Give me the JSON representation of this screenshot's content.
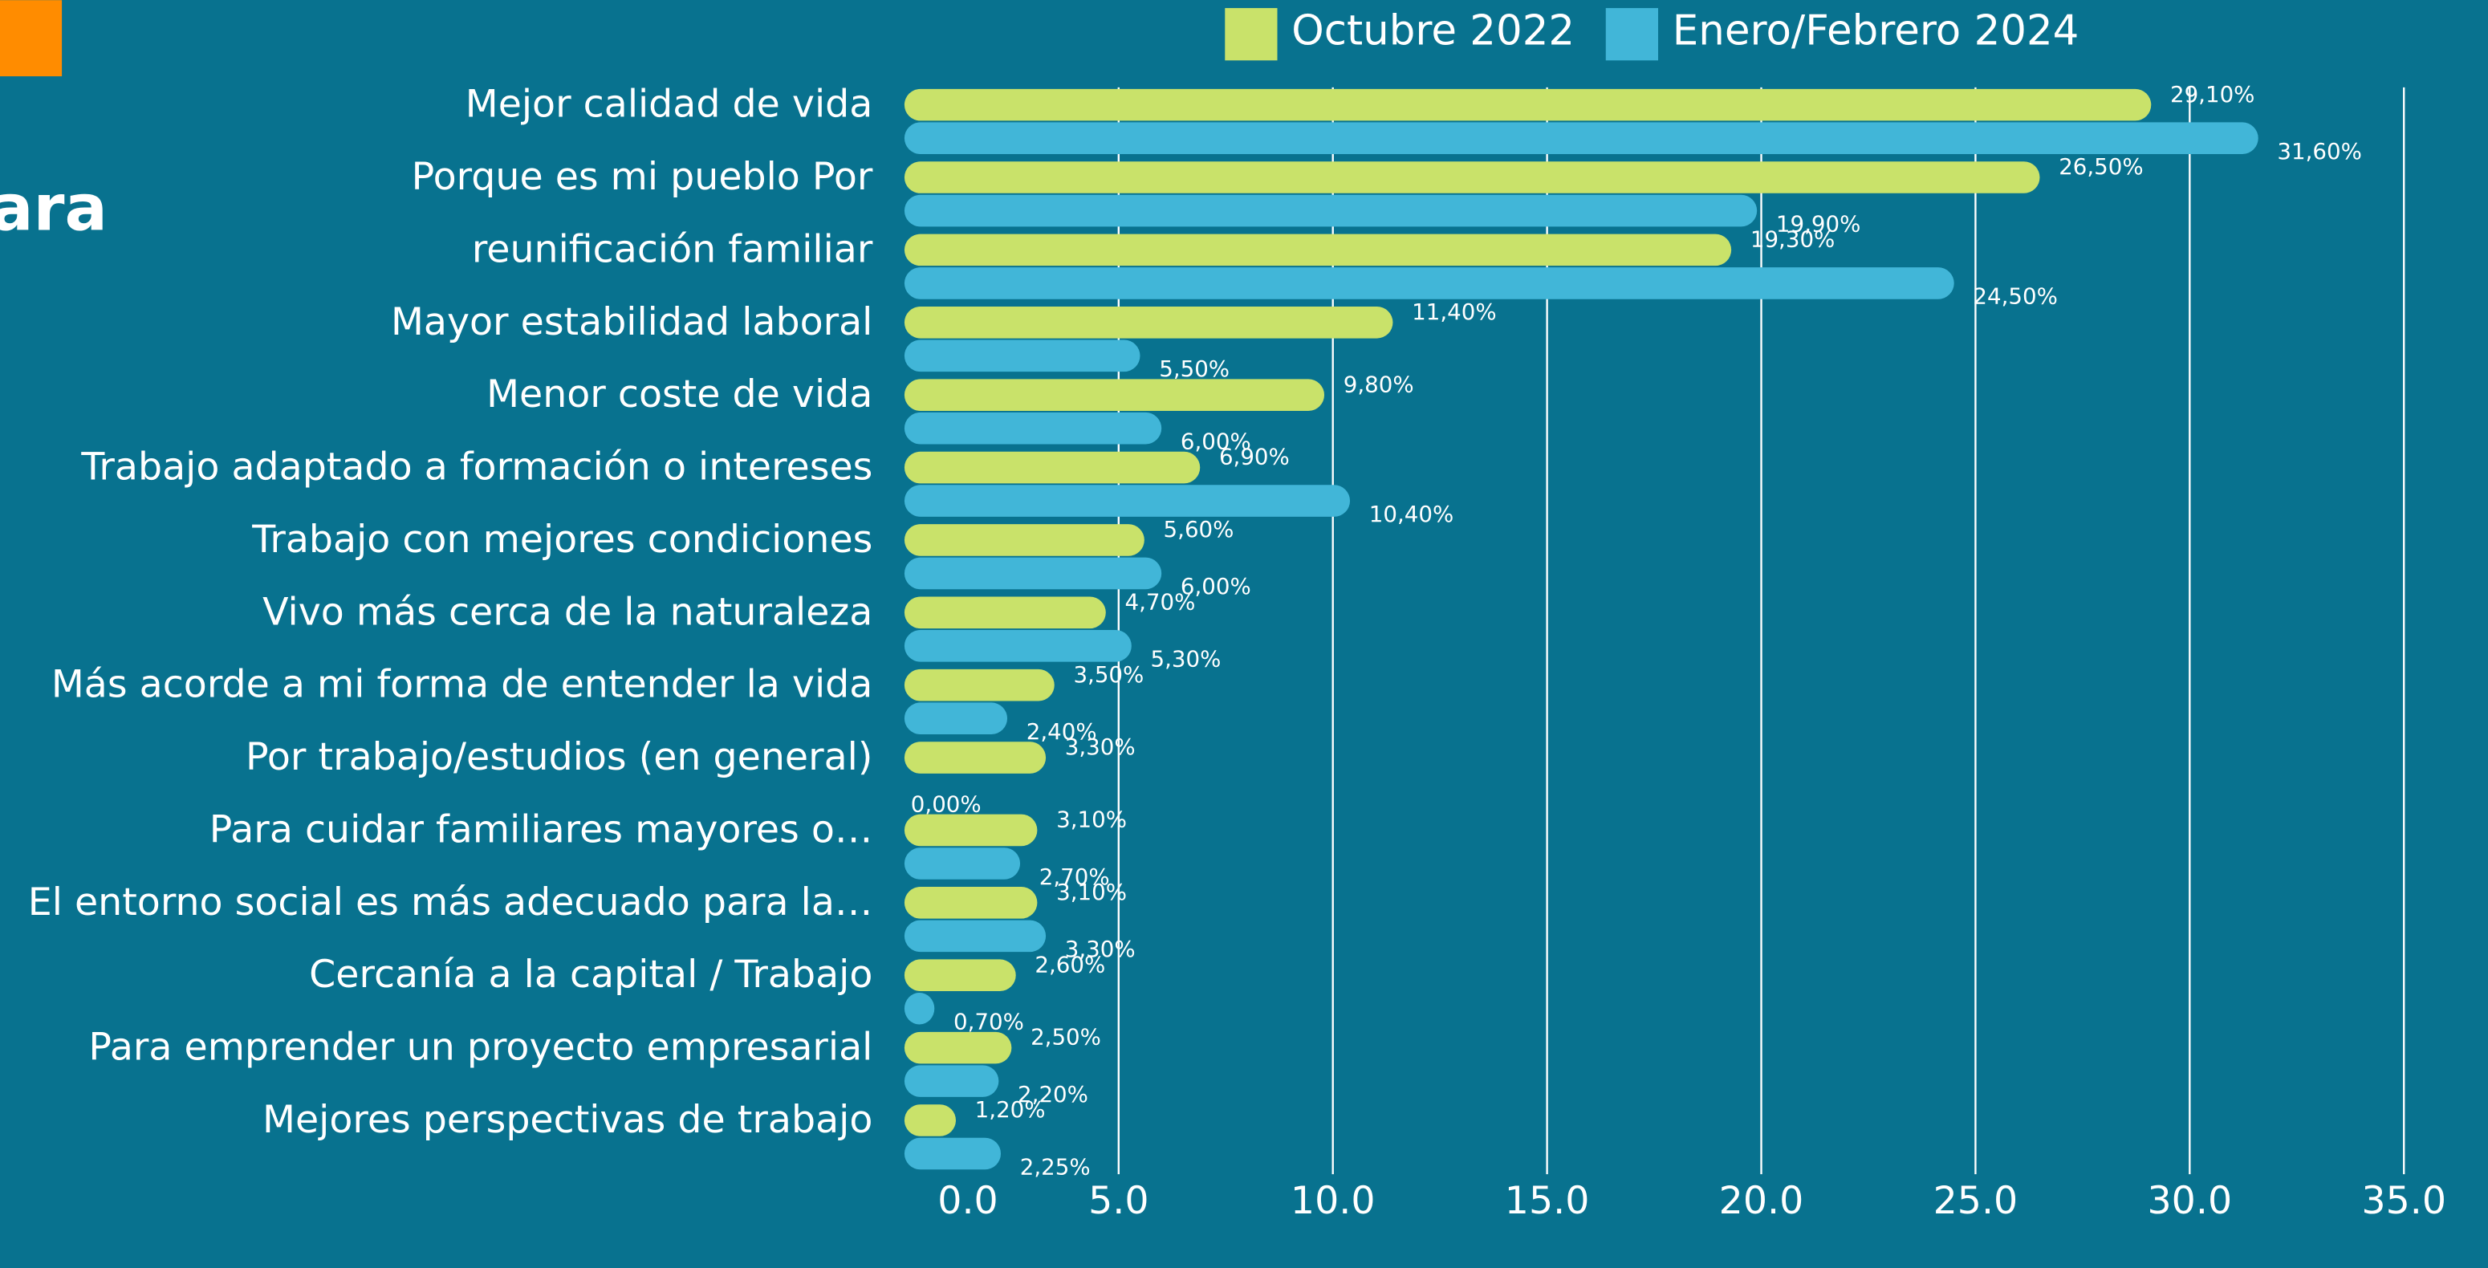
{
  "chart_data": {
    "type": "bar",
    "orientation": "horizontal",
    "title": "ara",
    "categories": [
      "Mejor calidad de vida",
      "Porque es mi pueblo Por",
      "reunificación familiar",
      "Mayor estabilidad laboral",
      "Menor coste de vida",
      "Trabajo adaptado a formación o intereses",
      "Trabajo con mejores condiciones",
      "Vivo más cerca de la naturaleza",
      "Más acorde a mi forma de entender la vida",
      "Por trabajo/estudios (en general)",
      "Para cuidar familiares mayores o…",
      "El entorno social es más adecuado para la…",
      "Cercanía a la capital / Trabajo",
      "Para emprender un proyecto empresarial",
      "Mejores perspectivas de trabajo"
    ],
    "series": [
      {
        "name": "Octubre 2022",
        "color": "#c9e26a",
        "values": [
          29.1,
          26.5,
          19.3,
          11.4,
          9.8,
          6.9,
          5.6,
          4.7,
          3.5,
          3.3,
          3.1,
          3.1,
          2.6,
          2.5,
          1.2
        ],
        "value_labels": [
          "29,10%",
          "26,50%",
          "19,30%",
          "11,40%",
          "9,80%",
          "6,90%",
          "5,60%",
          "4,70%",
          "3,50%",
          "3,30%",
          "3,10%",
          "3,10%",
          "2,60%",
          "2,50%",
          "1,20%"
        ]
      },
      {
        "name": "Enero/Febrero 2024",
        "color": "#41b6d8",
        "values": [
          31.6,
          19.9,
          24.5,
          5.5,
          6.0,
          10.4,
          6.0,
          5.3,
          2.4,
          0,
          2.7,
          3.3,
          0.7,
          2.2,
          2.25
        ],
        "value_labels": [
          "31,60%",
          "19,90%",
          "24,50%",
          "5,50%",
          "6,00%",
          "10,40%",
          "6,00%",
          "5,30%",
          "2,40%",
          "0,00%",
          "2,70%",
          "3,30%",
          "0,70%",
          "2,20%",
          "2,25%"
        ]
      }
    ],
    "xlim": [
      0,
      35
    ],
    "xticks": [
      {
        "value": 0,
        "label": "0.0"
      },
      {
        "value": 5,
        "label": "5.0"
      },
      {
        "value": 10,
        "label": "10.0"
      },
      {
        "value": 15,
        "label": "15.0"
      },
      {
        "value": 20,
        "label": "20.0"
      },
      {
        "value": 25,
        "label": "25.0"
      },
      {
        "value": 30,
        "label": "30.0"
      },
      {
        "value": 35,
        "label": "35.0"
      }
    ],
    "grid": true,
    "legend": "top"
  }
}
